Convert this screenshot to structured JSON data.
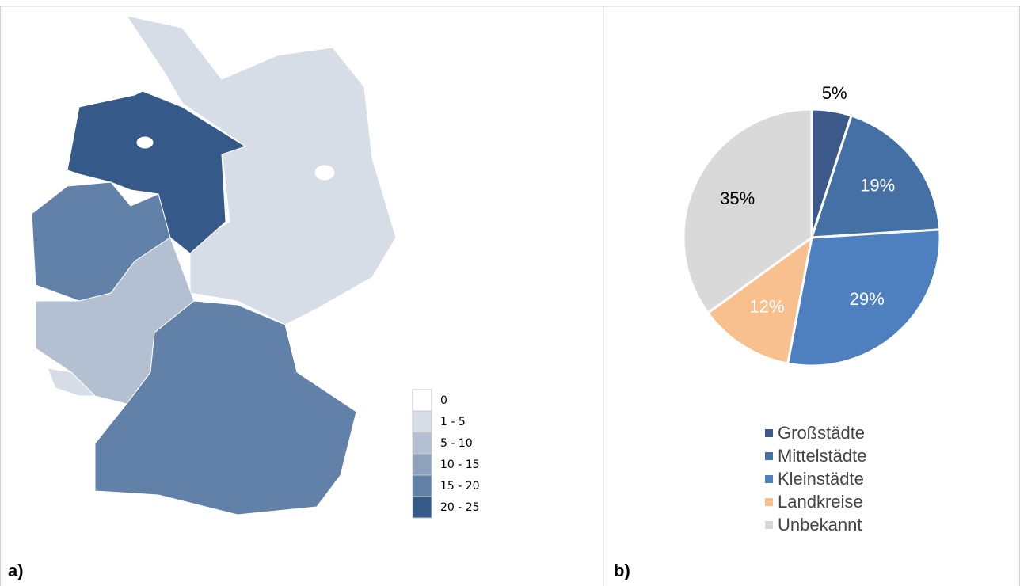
{
  "map": {
    "legend": [
      {
        "label": "0",
        "color": "#ffffff"
      },
      {
        "label": "1 - 5",
        "color": "#d6dde7"
      },
      {
        "label": "5 - 10",
        "color": "#b3c0d2"
      },
      {
        "label": "10 - 15",
        "color": "#8ea2be"
      },
      {
        "label": "15 - 20",
        "color": "#6281a9"
      },
      {
        "label": "20 - 25",
        "color": "#355a8a"
      }
    ],
    "panel_label": "a)"
  },
  "chart_data": {
    "type": "pie",
    "panel_label": "b)",
    "categories": [
      "Großstädte",
      "Mittelstädte",
      "Kleinstädte",
      "Landkreise",
      "Unbekannt"
    ],
    "values": [
      5,
      19,
      29,
      12,
      35
    ],
    "value_labels": [
      "5%",
      "19%",
      "29%",
      "12%",
      "35%"
    ],
    "colors": [
      "#3b5a8a",
      "#4470a6",
      "#4e80c0",
      "#f9c08f",
      "#d9d9d9"
    ],
    "label_colors": [
      "#000000",
      "#ffffff",
      "#ffffff",
      "#ffffff",
      "#000000"
    ]
  }
}
